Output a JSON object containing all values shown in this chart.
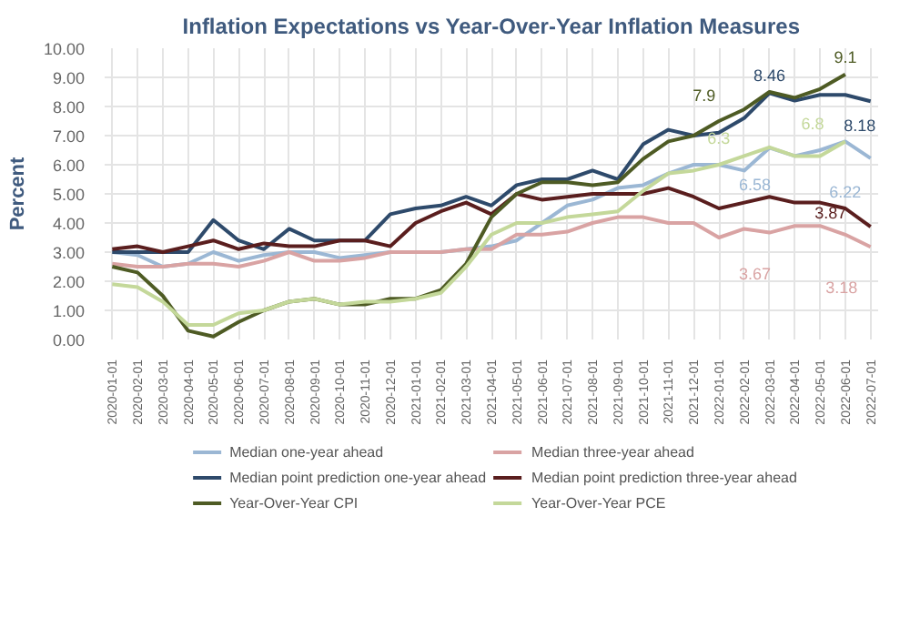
{
  "chart_data": {
    "type": "line",
    "title": "Inflation Expectations vs Year-Over-Year Inflation Measures",
    "ylabel": "Percent",
    "categories": [
      "2020-01-01",
      "2020-02-01",
      "2020-03-01",
      "2020-04-01",
      "2020-05-01",
      "2020-06-01",
      "2020-07-01",
      "2020-08-01",
      "2020-09-01",
      "2020-10-01",
      "2020-11-01",
      "2020-12-01",
      "2021-01-01",
      "2021-02-01",
      "2021-03-01",
      "2021-04-01",
      "2021-05-01",
      "2021-06-01",
      "2021-07-01",
      "2021-08-01",
      "2021-09-01",
      "2021-10-01",
      "2021-11-01",
      "2021-12-01",
      "2022-01-01",
      "2022-02-01",
      "2022-03-01",
      "2022-04-01",
      "2022-05-01",
      "2022-06-01",
      "2022-07-01"
    ],
    "series": [
      {
        "name": "Median one-year ahead",
        "color": "#9bb7d4",
        "values": [
          3.0,
          2.9,
          2.5,
          2.6,
          3.0,
          2.7,
          2.9,
          3.0,
          3.0,
          2.8,
          2.9,
          3.0,
          3.0,
          3.0,
          3.1,
          3.2,
          3.4,
          4.0,
          4.6,
          4.8,
          5.2,
          5.3,
          5.7,
          6.0,
          6.0,
          5.8,
          6.58,
          6.3,
          6.5,
          6.8,
          6.22
        ]
      },
      {
        "name": "Median three-year ahead",
        "color": "#d9a3a3",
        "values": [
          2.6,
          2.5,
          2.5,
          2.6,
          2.6,
          2.5,
          2.7,
          3.0,
          2.7,
          2.7,
          2.8,
          3.0,
          3.0,
          3.0,
          3.1,
          3.1,
          3.6,
          3.6,
          3.7,
          4.0,
          4.2,
          4.2,
          4.0,
          4.0,
          3.5,
          3.8,
          3.67,
          3.9,
          3.9,
          3.6,
          3.18
        ]
      },
      {
        "name": "Median point prediction one-year ahead",
        "color": "#2e4a6b",
        "values": [
          3.0,
          3.0,
          3.0,
          3.0,
          4.1,
          3.4,
          3.1,
          3.8,
          3.4,
          3.4,
          3.4,
          4.3,
          4.5,
          4.6,
          4.9,
          4.6,
          5.3,
          5.5,
          5.5,
          5.8,
          5.5,
          6.7,
          7.2,
          7.0,
          7.1,
          7.6,
          8.46,
          8.2,
          8.4,
          8.4,
          8.18
        ]
      },
      {
        "name": "Median point prediction three-year ahead",
        "color": "#5a1e1e",
        "values": [
          3.1,
          3.2,
          3.0,
          3.2,
          3.4,
          3.1,
          3.3,
          3.2,
          3.2,
          3.4,
          3.4,
          3.2,
          4.0,
          4.4,
          4.7,
          4.3,
          5.0,
          4.8,
          4.9,
          5.0,
          5.0,
          5.0,
          5.2,
          4.9,
          4.5,
          4.7,
          4.9,
          4.7,
          4.7,
          4.5,
          3.87
        ]
      },
      {
        "name": "Year-Over-Year CPI",
        "color": "#4e5b24",
        "values": [
          2.5,
          2.3,
          1.5,
          0.3,
          0.1,
          0.6,
          1.0,
          1.3,
          1.4,
          1.2,
          1.2,
          1.4,
          1.4,
          1.7,
          2.6,
          4.2,
          5.0,
          5.4,
          5.4,
          5.3,
          5.4,
          6.2,
          6.8,
          7.0,
          7.5,
          7.9,
          8.5,
          8.3,
          8.6,
          9.1,
          null
        ]
      },
      {
        "name": "Year-Over-Year PCE",
        "color": "#c4d89a",
        "values": [
          1.9,
          1.8,
          1.3,
          0.5,
          0.5,
          0.9,
          1.0,
          1.3,
          1.4,
          1.2,
          1.3,
          1.3,
          1.4,
          1.6,
          2.5,
          3.6,
          4.0,
          4.0,
          4.2,
          4.3,
          4.4,
          5.1,
          5.7,
          5.8,
          6.0,
          6.3,
          6.6,
          6.3,
          6.3,
          6.8,
          null
        ]
      }
    ],
    "annotations": [
      {
        "text": "7.9",
        "x": "2022-02-01",
        "y": 7.9
      },
      {
        "text": "8.46",
        "x": "2022-03-01",
        "y": 8.46
      },
      {
        "text": "9.1",
        "x": "2022-06-01",
        "y": 9.1
      },
      {
        "text": "8.18",
        "x": "2022-07-01",
        "y": 8.18
      },
      {
        "text": "6.3",
        "x": "2022-02-01",
        "y": 6.3
      },
      {
        "text": "6.8",
        "x": "2022-06-01",
        "y": 6.8
      },
      {
        "text": "6.58",
        "x": "2022-03-01",
        "y": 6.58
      },
      {
        "text": "6.22",
        "x": "2022-07-01",
        "y": 6.22
      },
      {
        "text": "3.87",
        "x": "2022-07-01",
        "y": 3.87
      },
      {
        "text": "3.67",
        "x": "2022-03-01",
        "y": 3.67
      },
      {
        "text": "3.18",
        "x": "2022-07-01",
        "y": 3.18
      }
    ],
    "ylim": [
      0,
      10
    ],
    "yticks": [
      {
        "value": 0,
        "label": "0.00"
      },
      {
        "value": 1,
        "label": "1.00"
      },
      {
        "value": 2,
        "label": "2.00"
      },
      {
        "value": 3,
        "label": "3.00"
      },
      {
        "value": 4,
        "label": "4.00"
      },
      {
        "value": 5,
        "label": "5.00"
      },
      {
        "value": 6,
        "label": "6.00"
      },
      {
        "value": 7,
        "label": "7.00"
      },
      {
        "value": 8,
        "label": "8.00"
      },
      {
        "value": 9,
        "label": "9.00"
      },
      {
        "value": 10,
        "label": "10.00"
      }
    ],
    "grid": true,
    "legend": "bottom",
    "line_style": "solid"
  }
}
